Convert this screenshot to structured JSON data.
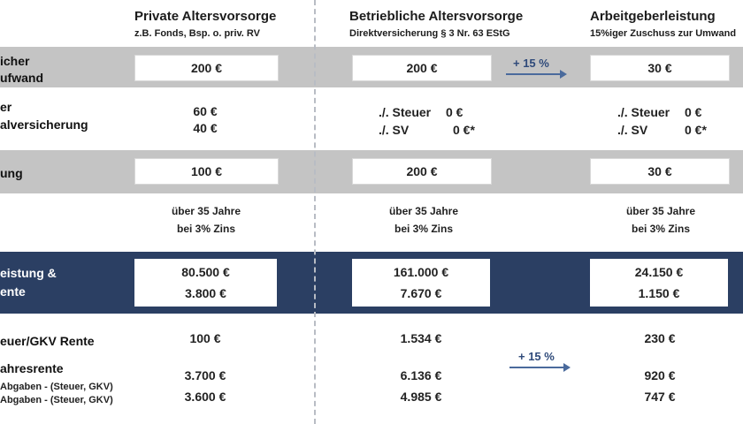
{
  "headers": {
    "private": {
      "title": "Private Altersvorsorge",
      "subtitle": "z.B. Fonds, Bsp. o. priv. RV"
    },
    "company": {
      "title": "Betriebliche Altersvorsorge",
      "subtitle": "Direktversicherung § 3 Nr. 63 EStG"
    },
    "employer": {
      "title": "Arbeitgeberleistung",
      "subtitle": "15%iger  Zuschuss zur Umwand"
    }
  },
  "row_labels": {
    "aufwand_1": "icher",
    "aufwand_2": "ufwand",
    "steuer_1": "er",
    "steuer_2": "alversicherung",
    "zahlung": "ung",
    "leistung_1": "eistung &",
    "leistung_2": "ente",
    "gkv": "euer/GKV Rente",
    "jahresrente": "ahresrente",
    "abgaben_1": "Abgaben -  (Steuer, GKV)",
    "abgaben_2": "Abgaben - (Steuer, GKV)"
  },
  "private": {
    "aufwand": "200 €",
    "steuer": "60 €",
    "sv": "40 €",
    "zahlung": "100 €",
    "dauer": "über 35 Jahre",
    "zins": "bei 3% Zins",
    "kapital": "80.500 €",
    "rente": "3.800 €",
    "gkv": "100 €",
    "jahres_1": "3.700 €",
    "jahres_2": "3.600 €"
  },
  "company": {
    "aufwand": "200 €",
    "steuer_label": "./. Steuer",
    "steuer_val": "0 €",
    "sv_label": "./. SV",
    "sv_val": "0 €*",
    "zahlung": "200 €",
    "dauer": "über 35 Jahre",
    "zins": "bei 3% Zins",
    "kapital": "161.000 €",
    "rente": "7.670 €",
    "gkv": "1.534 €",
    "jahres_1": "6.136 €",
    "jahres_2": "4.985 €"
  },
  "employer": {
    "aufwand": "30 €",
    "steuer_label": "./. Steuer",
    "steuer_val": "0 €",
    "sv_label": "./. SV",
    "sv_val": "0 €*",
    "zahlung": "30 €",
    "dauer": "über 35 Jahre",
    "zins": "bei 3% Zins",
    "kapital": "24.150 €",
    "rente": "1.150 €",
    "gkv": "230 €",
    "jahres_1": "920 €",
    "jahres_2": "747 €"
  },
  "arrows": {
    "top": "+ 15 %",
    "bottom": "+ 15 %"
  },
  "colors": {
    "gray_band": "#c4c4c4",
    "navy_band": "#2b3f63",
    "arrow": "#4a6a9c"
  }
}
